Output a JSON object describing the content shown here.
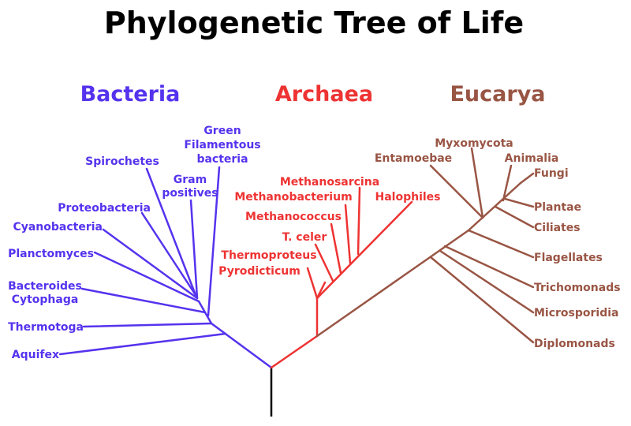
{
  "title": "Phylogenetic Tree of Life",
  "colors": {
    "bacteria": "#5533ee",
    "archaea": "#ee3333",
    "eucarya": "#995544",
    "root": "#000000"
  },
  "domains": {
    "bacteria": {
      "name": "Bacteria",
      "leaves": {
        "green": [
          "Green",
          "Filamentous",
          "bacteria"
        ],
        "gram": [
          "Gram",
          "positives"
        ],
        "spirochetes": "Spirochetes",
        "proteobacteria": "Proteobacteria",
        "cyanobacteria": "Cyanobacteria",
        "planctomyces": "Planctomyces",
        "bacteroides": [
          "Bacteroides",
          "Cytophaga"
        ],
        "thermotoga": "Thermotoga",
        "aquifex": "Aquifex"
      }
    },
    "archaea": {
      "name": "Archaea",
      "leaves": {
        "methanosarcina": "Methanosarcina",
        "methanobacterium": "Methanobacterium",
        "halophiles": "Halophiles",
        "methanococcus": "Methanococcus",
        "tceler": "T. celer",
        "thermoproteus": "Thermoproteus",
        "pyrodicticum": "Pyrodicticum"
      }
    },
    "eucarya": {
      "name": "Eucarya",
      "leaves": {
        "myxomycota": "Myxomycota",
        "entamoebae": "Entamoebae",
        "animalia": "Animalia",
        "fungi": "Fungi",
        "plantae": "Plantae",
        "ciliates": "Ciliates",
        "flagellates": "Flagellates",
        "trichomonads": "Trichomonads",
        "microsporidia": "Microsporidia",
        "diplomonads": "Diplomonads"
      }
    }
  }
}
